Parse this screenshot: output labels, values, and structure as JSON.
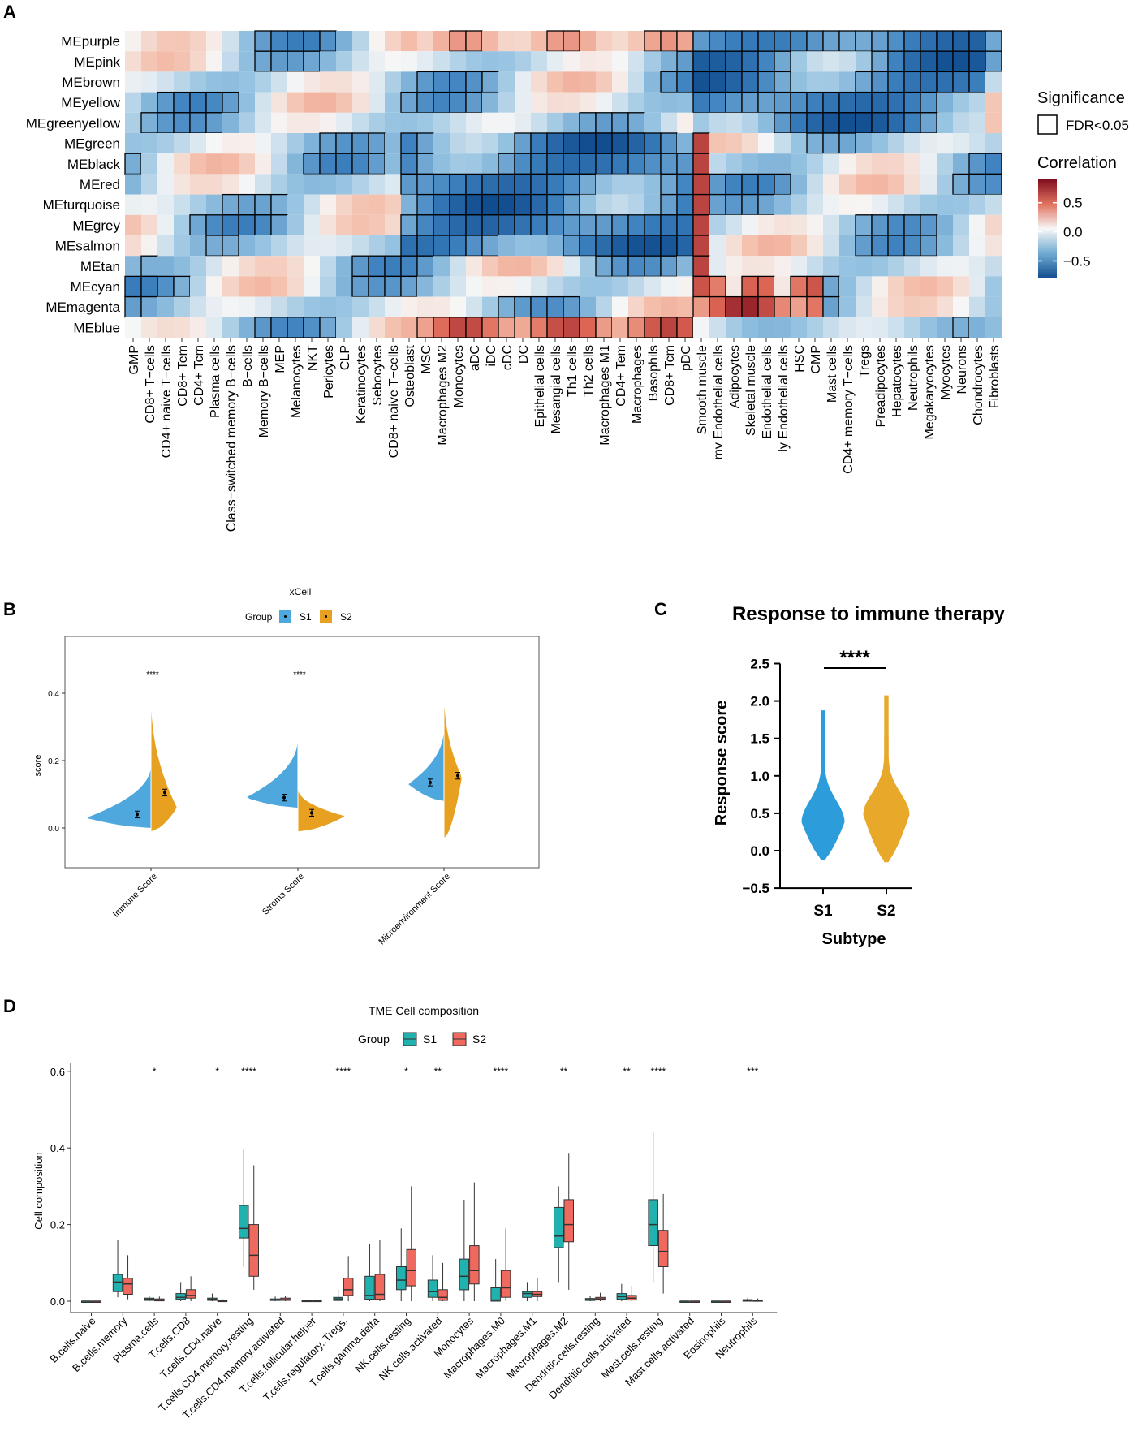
{
  "panels": {
    "A": "A",
    "B": "B",
    "C": "C",
    "D": "D"
  },
  "colors": {
    "s1_blue": "#4EA8DE",
    "s2_orange": "#E8A020",
    "s1_teal": "#21B1AE",
    "s2_red": "#F0695F",
    "neg": "#1E5FA8",
    "pos": "#9E1B23"
  },
  "chart_data": [
    {
      "id": "A",
      "type": "heatmap",
      "rows": [
        "MEpurple",
        "MEpink",
        "MEbrown",
        "MEyellow",
        "MEgreenyellow",
        "MEgreen",
        "MEblack",
        "MEred",
        "MEturquoise",
        "MEgrey",
        "MEsalmon",
        "MEtan",
        "MEcyan",
        "MEmagenta",
        "MEblue"
      ],
      "columns": [
        "GMP",
        "CD8+ T−cells",
        "CD4+ naive T−cells",
        "CD8+ Tem",
        "CD4+ Tcm",
        "Plasma cells",
        "Class−switched memory B−cells",
        "B−cells",
        "Memory B−cells",
        "MEP",
        "Melanocytes",
        "NKT",
        "Pericytes",
        "CLP",
        "Keratinocytes",
        "Sebocytes",
        "CD8+ naive T−cells",
        "Osteoblast",
        "MSC",
        "Macrophages M2",
        "Monocytes",
        "aDC",
        "iDC",
        "cDC",
        "DC",
        "Epithelial cells",
        "Mesangial cells",
        "Th1 cells",
        "Th2 cells",
        "Macrophages M1",
        "CD4+ Tem",
        "Macrophages",
        "Basophils",
        "CD8+ Tcm",
        "pDC",
        "Smooth muscle",
        "mv Endothelial cells",
        "Adipocytes",
        "Skeletal muscle",
        "Endothelial cells",
        "ly Endothelial cells",
        "HSC",
        "CMP",
        "Mast cells",
        "CD4+ memory T−cells",
        "Tregs",
        "Preadipocytes",
        "Hepatocytes",
        "Neutrophils",
        "Megakaryocytes",
        "Myocytes",
        "Neurons",
        "Chondrocytes",
        "Fibroblasts"
      ],
      "legend": {
        "significance_title": "Significance",
        "significance_label": "FDR<0.05",
        "correlation_title": "Correlation",
        "ticks": [
          "0.5",
          "0.0",
          "−0.5"
        ],
        "tick_values": [
          0.5,
          0.0,
          -0.5
        ],
        "range": [
          -0.8,
          0.9
        ]
      }
    },
    {
      "id": "B",
      "type": "split-violin",
      "title": "xCell",
      "legend_title": "Group",
      "groups": [
        "S1",
        "S2"
      ],
      "ylabel": "score",
      "yticks": [
        "0.0",
        "0.2",
        "0.4"
      ],
      "ylim": [
        -0.1,
        0.55
      ],
      "categories": [
        "Immune Score",
        "Stroma Score",
        "Microenvironment Score"
      ],
      "significance": [
        "****",
        "****",
        ""
      ],
      "means": {
        "S1": [
          0.04,
          0.09,
          0.135
        ],
        "S2": [
          0.105,
          0.045,
          0.155
        ]
      }
    },
    {
      "id": "C",
      "type": "violin",
      "title": "Response to immune therapy",
      "xlabel": "Subtype",
      "ylabel": "Response score",
      "categories": [
        "S1",
        "S2"
      ],
      "yticks": [
        "2.5",
        "2.0",
        "1.5",
        "1.0",
        "0.5",
        "0.0",
        "−0.5"
      ],
      "ylim": [
        -0.5,
        2.5
      ],
      "range": {
        "S1": [
          -0.12,
          1.87
        ],
        "S2": [
          -0.15,
          2.07
        ]
      },
      "significance": "****"
    },
    {
      "id": "D",
      "type": "box",
      "title": "TME Cell composition",
      "legend_title": "Group",
      "groups": [
        "S1",
        "S2"
      ],
      "ylabel": "Cell composition",
      "yticks": [
        "0.0",
        "0.2",
        "0.4",
        "0.6"
      ],
      "ylim": [
        -0.02,
        0.63
      ],
      "categories": [
        "B.cells.naive",
        "B.cells.memory",
        "Plasma.cells",
        "T.cells.CD8",
        "T.cells.CD4.naive",
        "T.cells.CD4.memory.resting",
        "T.cells.CD4.memory.activated",
        "T.cells.follicular.helper",
        "T.cells.regulatory..Tregs.",
        "T.cells.gamma.delta",
        "NK.cells.resting",
        "NK.cells.activated",
        "Monocytes",
        "Macrophages.M0",
        "Macrophages.M1",
        "Macrophages.M2",
        "Dendritic.cells.resting",
        "Dendritic.cells.activated",
        "Mast.cells.resting",
        "Mast.cells.activated",
        "Eosinophils",
        "Neutrophils"
      ],
      "significance": [
        "",
        "",
        "*",
        "",
        "*",
        "****",
        "",
        "",
        "****",
        "",
        "*",
        "**",
        "",
        "****",
        "",
        "**",
        "",
        "**",
        "****",
        "",
        "",
        "***"
      ]
    }
  ]
}
